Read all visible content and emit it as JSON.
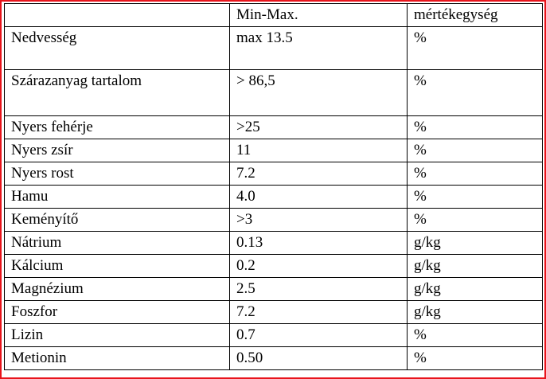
{
  "table": {
    "header": [
      "Min-Max.",
      "mértékegység"
    ],
    "rows": [
      [
        "Nedvesség",
        "max 13.5",
        "%"
      ],
      [
        "Szárazanyag tartalom",
        "> 86,5",
        "%"
      ],
      [
        "Nyers fehérje",
        ">25",
        "%"
      ],
      [
        "Nyers zsír",
        "11",
        "%"
      ],
      [
        "Nyers rost",
        "7.2",
        "%"
      ],
      [
        "Hamu",
        "4.0",
        "%"
      ],
      [
        "Keményítő",
        ">3",
        "%"
      ],
      [
        "Nátrium",
        "0.13",
        "g/kg"
      ],
      [
        "Kálcium",
        "0.2",
        "g/kg"
      ],
      [
        "Magnézium",
        "2.5",
        "g/kg"
      ],
      [
        "Foszfor",
        "7.2",
        "g/kg"
      ],
      [
        "Lizin",
        "0.7",
        "%"
      ],
      [
        "Metionin",
        "0.50",
        "%"
      ]
    ]
  }
}
